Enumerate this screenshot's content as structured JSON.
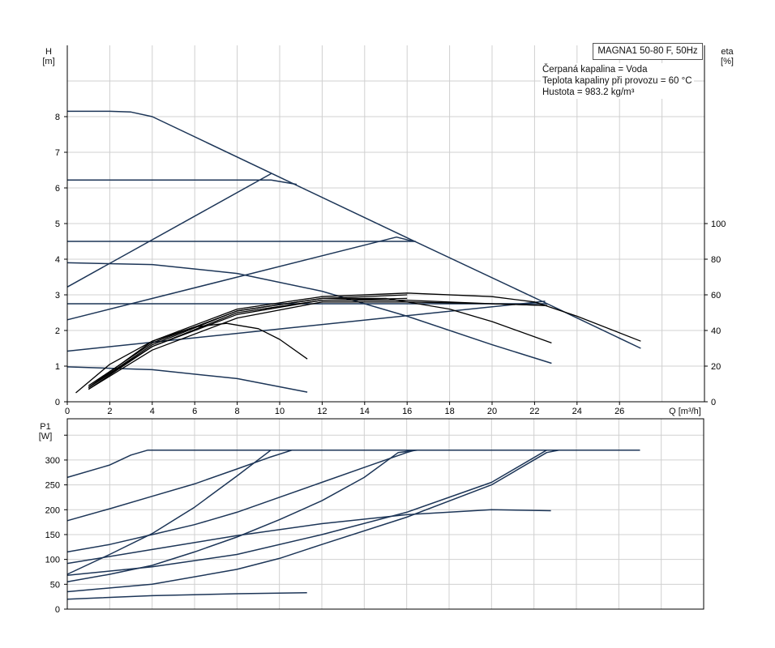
{
  "legend": {
    "model": "MAGNA1 50-80 F, 50Hz",
    "lines": [
      "Čerpaná kapalina = Voda",
      "Teplota kapaliny při provozu = 60 °C",
      "Hustota = 983.2 kg/m³"
    ]
  },
  "colors": {
    "h_curves": "#1c3557",
    "eta_curves": "#000000",
    "grid": "#d0d0d0"
  },
  "chart_data": [
    {
      "type": "line",
      "panel": "head-efficiency",
      "xlabel": "Q [m³/h]",
      "ylabel_top": "H",
      "ylabel_unit": "[m]",
      "y2label_top": "eta",
      "y2label_unit": "[%]",
      "xlim": [
        0,
        30
      ],
      "ylim": [
        0,
        10
      ],
      "y2lim": [
        0,
        200
      ],
      "grid": true,
      "x_ticks": [
        "0",
        "2",
        "4",
        "6",
        "8",
        "10",
        "12",
        "14",
        "16",
        "18",
        "20",
        "22",
        "24",
        "26"
      ],
      "y_ticks": [
        "0",
        "1",
        "2",
        "3",
        "4",
        "5",
        "6",
        "7",
        "8"
      ],
      "y2_ticks": [
        "0",
        "20",
        "40",
        "60",
        "80",
        "100"
      ],
      "h_series": [
        {
          "x": [
            0,
            2,
            3,
            4,
            10,
            16,
            22.6,
            24,
            27
          ],
          "y": [
            8.15,
            8.15,
            8.13,
            8.0,
            6.3,
            4.6,
            2.75,
            2.35,
            1.5
          ]
        },
        {
          "x": [
            0,
            9.6,
            10.8
          ],
          "y": [
            6.22,
            6.22,
            6.1
          ]
        },
        {
          "x": [
            0,
            9.6
          ],
          "y": [
            3.22,
            6.4
          ]
        },
        {
          "x": [
            0,
            16,
            16.4
          ],
          "y": [
            4.5,
            4.5,
            4.5
          ]
        },
        {
          "x": [
            0,
            15.5,
            16.3
          ],
          "y": [
            2.3,
            4.62,
            4.5
          ]
        },
        {
          "x": [
            0,
            22.6
          ],
          "y": [
            2.75,
            2.75
          ]
        },
        {
          "x": [
            0,
            22.5
          ],
          "y": [
            1.42,
            2.82
          ]
        },
        {
          "x": [
            0,
            4,
            8,
            12,
            16,
            20,
            22.8
          ],
          "y": [
            3.9,
            3.85,
            3.6,
            3.1,
            2.4,
            1.6,
            1.08
          ]
        },
        {
          "x": [
            0,
            4,
            8,
            11.3
          ],
          "y": [
            0.98,
            0.9,
            0.65,
            0.27
          ]
        }
      ],
      "eta_series": [
        {
          "x": [
            0.4,
            2,
            4,
            6,
            7.5,
            9,
            10,
            11.3
          ],
          "y": [
            5,
            21,
            34,
            42,
            44,
            41,
            35,
            24
          ]
        },
        {
          "x": [
            1,
            4,
            8,
            12,
            15,
            18,
            20,
            22.8
          ],
          "y": [
            8,
            32,
            51,
            58,
            58,
            52,
            45,
            33
          ]
        },
        {
          "x": [
            1,
            4,
            8,
            12,
            16,
            20,
            22,
            24,
            27
          ],
          "y": [
            8,
            34,
            52,
            59,
            61,
            59,
            56,
            48,
            34
          ]
        },
        {
          "x": [
            1,
            4,
            8,
            12,
            16,
            20,
            22.6
          ],
          "y": [
            7,
            31,
            49,
            57,
            57,
            55,
            54
          ]
        },
        {
          "x": [
            1,
            4,
            8,
            12,
            16,
            20,
            22.6
          ],
          "y": [
            7,
            29,
            47,
            56,
            56,
            55,
            54
          ]
        },
        {
          "x": [
            1,
            4,
            8,
            12,
            16
          ],
          "y": [
            9,
            33,
            51,
            58,
            60
          ]
        },
        {
          "x": [
            1,
            4,
            8,
            12,
            16
          ],
          "y": [
            8,
            31,
            50,
            57,
            58
          ]
        }
      ]
    },
    {
      "type": "line",
      "panel": "power",
      "ylabel_top": "P1",
      "ylabel_unit": "[W]",
      "xlim": [
        0,
        30
      ],
      "ylim": [
        0,
        383
      ],
      "grid": true,
      "y_ticks": [
        "0",
        "50",
        "100",
        "150",
        "200",
        "250",
        "300"
      ],
      "series": [
        {
          "x": [
            0,
            2,
            3,
            3.8,
            27
          ],
          "y": [
            265,
            290,
            310,
            320,
            320
          ]
        },
        {
          "x": [
            0,
            2,
            4,
            6,
            8,
            9.5,
            10.6
          ],
          "y": [
            178,
            202,
            227,
            252,
            282,
            305,
            320
          ]
        },
        {
          "x": [
            0,
            2,
            4,
            6,
            8,
            9.6
          ],
          "y": [
            70,
            110,
            152,
            205,
            268,
            320
          ]
        },
        {
          "x": [
            0,
            2,
            4,
            6,
            8,
            10,
            12,
            14,
            16,
            16.4
          ],
          "y": [
            115,
            130,
            150,
            170,
            195,
            225,
            255,
            285,
            315,
            320
          ]
        },
        {
          "x": [
            0,
            2,
            4,
            6,
            8,
            10,
            12,
            14,
            15.6,
            16.5
          ],
          "y": [
            55,
            70,
            88,
            115,
            145,
            180,
            218,
            265,
            315,
            320
          ]
        },
        {
          "x": [
            0,
            4,
            8,
            12,
            16,
            20,
            22.8
          ],
          "y": [
            92,
            120,
            148,
            172,
            190,
            200,
            198
          ]
        },
        {
          "x": [
            0,
            4,
            8,
            12,
            16,
            20,
            22.6
          ],
          "y": [
            68,
            85,
            110,
            150,
            195,
            255,
            320
          ]
        },
        {
          "x": [
            0,
            4,
            8,
            10,
            12,
            16,
            20,
            22.6,
            23.2
          ],
          "y": [
            35,
            50,
            80,
            102,
            130,
            185,
            250,
            315,
            320
          ]
        },
        {
          "x": [
            0,
            4,
            8,
            11.3
          ],
          "y": [
            20,
            27,
            31,
            33
          ]
        }
      ]
    }
  ]
}
